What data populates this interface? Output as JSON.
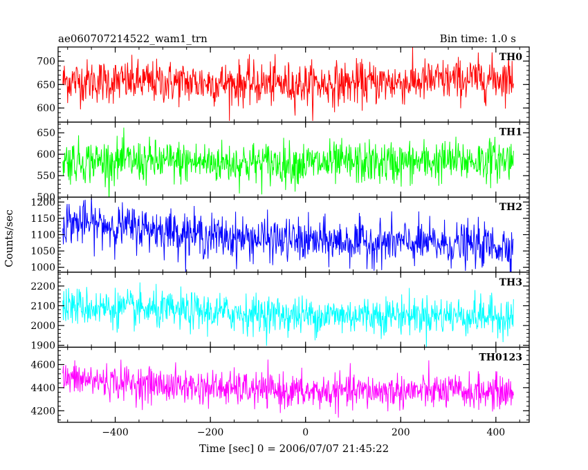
{
  "header": {
    "title": "ae060707214522_wam1_trn",
    "bin_time": "Bin time: 1.0 s"
  },
  "chart_data": {
    "type": "line",
    "title": "ae060707214522_wam1_trn",
    "subtitle": "Bin time: 1.0 s",
    "xlabel": "Time [sec] 0 = 2006/07/07 21:45:22",
    "ylabel": "Counts/sec",
    "xlim": [
      -520,
      470
    ],
    "xticks": [
      -400,
      -200,
      0,
      200,
      400
    ],
    "xtick_labels": [
      "−400",
      "−200",
      "0",
      "200",
      "400"
    ],
    "x_range_data": [
      -510,
      437
    ],
    "grid": false,
    "panels": [
      {
        "name": "TH0",
        "color": "#ff0000",
        "ylim": [
          570,
          730
        ],
        "yticks": [
          600,
          650,
          700
        ],
        "ytick_labels": [
          "600",
          "650",
          "700"
        ],
        "mean": 655,
        "noise": 23,
        "trend": [
          [
            -510,
            658
          ],
          [
            -300,
            655
          ],
          [
            0,
            650
          ],
          [
            200,
            655
          ],
          [
            437,
            665
          ]
        ]
      },
      {
        "name": "TH1",
        "color": "#00ff00",
        "ylim": [
          500,
          675
        ],
        "yticks": [
          500,
          550,
          600,
          650
        ],
        "ytick_labels": [
          "500",
          "550",
          "600",
          "650"
        ],
        "mean": 580,
        "noise": 25,
        "trend": [
          [
            -510,
            585
          ],
          [
            -300,
            582
          ],
          [
            0,
            578
          ],
          [
            200,
            580
          ],
          [
            437,
            588
          ]
        ]
      },
      {
        "name": "TH2",
        "color": "#0000ff",
        "ylim": [
          985,
          1215
        ],
        "yticks": [
          1000,
          1050,
          1100,
          1150,
          1200
        ],
        "ytick_labels": [
          "1000",
          "1050",
          "1100",
          "1150",
          "1200"
        ],
        "mean": 1090,
        "noise": 33,
        "trend": [
          [
            -510,
            1140
          ],
          [
            -300,
            1115
          ],
          [
            -200,
            1095
          ],
          [
            0,
            1080
          ],
          [
            200,
            1075
          ],
          [
            437,
            1065
          ]
        ]
      },
      {
        "name": "TH3",
        "color": "#00ffff",
        "ylim": [
          1890,
          2270
        ],
        "yticks": [
          1900,
          2000,
          2100,
          2200
        ],
        "ytick_labels": [
          "1900",
          "2000",
          "2100",
          "2200"
        ],
        "mean": 2060,
        "noise": 48,
        "trend": [
          [
            -510,
            2100
          ],
          [
            -300,
            2075
          ],
          [
            0,
            2050
          ],
          [
            200,
            2055
          ],
          [
            437,
            2045
          ]
        ]
      },
      {
        "name": "TH0123",
        "color": "#ff00ff",
        "ylim": [
          4100,
          4750
        ],
        "yticks": [
          4200,
          4400,
          4600
        ],
        "ytick_labels": [
          "4200",
          "4400",
          "4600"
        ],
        "mean": 4390,
        "noise": 75,
        "trend": [
          [
            -510,
            4480
          ],
          [
            -300,
            4420
          ],
          [
            0,
            4360
          ],
          [
            200,
            4370
          ],
          [
            437,
            4360
          ]
        ]
      }
    ]
  }
}
